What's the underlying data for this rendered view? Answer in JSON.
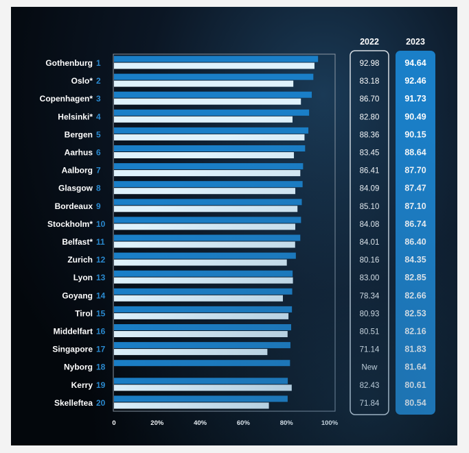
{
  "chart_data": {
    "type": "bar",
    "orientation": "horizontal",
    "title": "",
    "xlabel": "",
    "ylabel": "",
    "xlim": [
      0,
      100
    ],
    "x_ticks": [
      "0",
      "20%",
      "40%",
      "60%",
      "80%",
      "100%"
    ],
    "column_headers": {
      "y2022": "2022",
      "y2023": "2023"
    },
    "colors": {
      "y2023": "#1a7fc8",
      "y2022": "#dff2fc",
      "rank": "#2a8ad0",
      "pill": "#1a7fc8"
    },
    "categories": [
      "Gothenburg",
      "Oslo*",
      "Copenhagen*",
      "Helsinki*",
      "Bergen",
      "Aarhus",
      "Aalborg",
      "Glasgow",
      "Bordeaux",
      "Stockholm*",
      "Belfast*",
      "Zurich",
      "Lyon",
      "Goyang",
      "Tirol",
      "Middelfart",
      "Singapore",
      "Nyborg",
      "Kerry",
      "Skelleftea"
    ],
    "ranks": [
      "1",
      "2",
      "3",
      "4",
      "5",
      "6",
      "7",
      "8",
      "9",
      "10",
      "11",
      "12",
      "13",
      "14",
      "15",
      "16",
      "17",
      "18",
      "19",
      "20"
    ],
    "series": [
      {
        "values": [
          94.64,
          92.46,
          91.73,
          90.49,
          90.15,
          88.64,
          87.7,
          87.47,
          87.1,
          86.74,
          86.4,
          84.35,
          82.85,
          82.66,
          82.53,
          82.16,
          81.83,
          81.64,
          80.61,
          80.54
        ],
        "labels": [
          "94.64",
          "92.46",
          "91.73",
          "90.49",
          "90.15",
          "88.64",
          "87.70",
          "87.47",
          "87.10",
          "86.74",
          "86.40",
          "84.35",
          "82.85",
          "82.66",
          "82.53",
          "82.16",
          "81.83",
          "81.64",
          "80.61",
          "80.54"
        ]
      },
      {
        "values": [
          92.98,
          83.18,
          86.7,
          82.8,
          88.36,
          83.45,
          86.41,
          84.09,
          85.1,
          84.08,
          84.01,
          80.16,
          83.0,
          78.34,
          80.93,
          80.51,
          71.14,
          null,
          82.43,
          71.84
        ],
        "labels": [
          "92.98",
          "83.18",
          "86.70",
          "82.80",
          "88.36",
          "83.45",
          "86.41",
          "84.09",
          "85.10",
          "84.08",
          "84.01",
          "80.16",
          "83.00",
          "78.34",
          "80.93",
          "80.51",
          "71.14",
          "New",
          "82.43",
          "71.84"
        ]
      }
    ]
  }
}
